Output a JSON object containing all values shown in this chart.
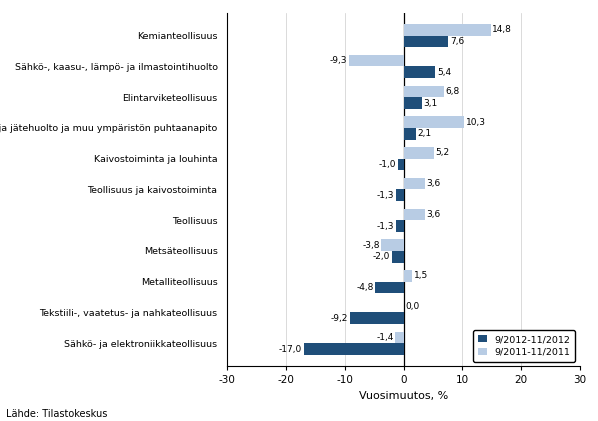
{
  "categories": [
    "Kemianteollisuus",
    "Sähkö-, kaasu-, lämpö- ja ilmastointihuolto",
    "Elintarviketeollisuus",
    "Vesi- ja jätehuolto ja muu ympäristön puhtaanapito",
    "Kaivostoiminta ja louhinta",
    "Teollisuus ja kaivostoiminta",
    "Teollisuus",
    "Metsäteollisuus",
    "Metalliteollisuus",
    "Tekstiili-, vaatetus- ja nahkateollisuus",
    "Sähkö- ja elektroniikkateollisuus"
  ],
  "values_2012": [
    7.6,
    5.4,
    3.1,
    2.1,
    -1.0,
    -1.3,
    -1.3,
    -2.0,
    -4.8,
    -9.2,
    -17.0
  ],
  "values_2011": [
    14.8,
    -9.3,
    6.8,
    10.3,
    5.2,
    3.6,
    3.6,
    -3.8,
    1.5,
    0.0,
    -1.4
  ],
  "color_2012": "#1F4E79",
  "color_2011": "#B8CCE4",
  "xlim": [
    -30,
    30
  ],
  "xticks": [
    -30,
    -20,
    -10,
    0,
    10,
    20,
    30
  ],
  "xlabel": "Vuosimuutos, %",
  "legend_2012": "9/2012-11/2012",
  "legend_2011": "9/2011-11/2011",
  "source": "Lähde: Tilastokeskus",
  "bar_height": 0.38,
  "figsize": [
    5.98,
    4.21
  ],
  "dpi": 100
}
